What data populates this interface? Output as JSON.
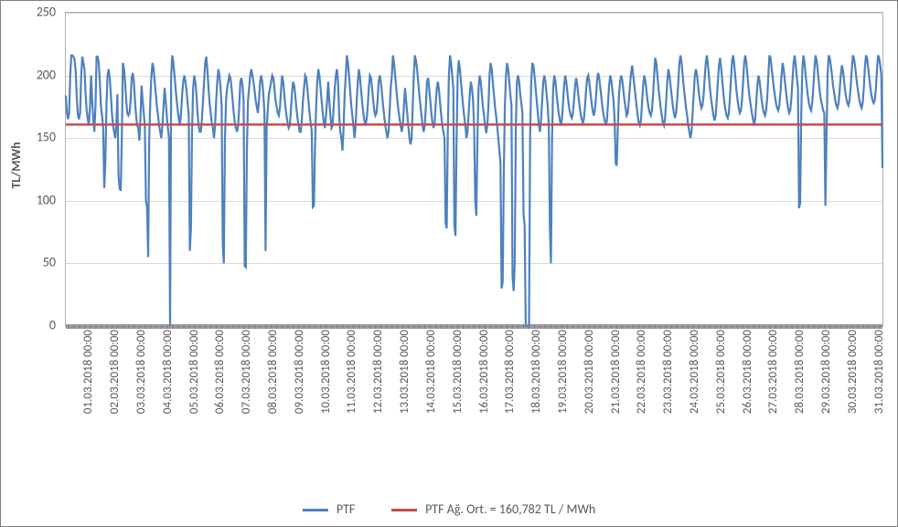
{
  "chart": {
    "type": "line",
    "ylabel": "TL/MWh",
    "ylabel_fontsize": 14,
    "ylim": [
      0,
      250
    ],
    "ytick_step": 50,
    "yticks": [
      0,
      50,
      100,
      150,
      200,
      250
    ],
    "background_color": "#ffffff",
    "border_color": "#808080",
    "plot_border_color": "#b0b0b0",
    "grid_color": "#d9d9d9",
    "tick_label_color": "#595959",
    "tick_label_fontsize": 14,
    "x_tick_label_fontsize": 13,
    "x_labels": [
      "01.03.2018 00:00",
      "02.03.2018 00:00",
      "03.03.2018 00:00",
      "04.03.2018 00:00",
      "05.03.2018 00:00",
      "06.03.2018 00:00",
      "07.03.2018 00:00",
      "08.03.2018 00:00",
      "09.03.2018 00:00",
      "10.03.2018 00:00",
      "11.03.2018 00:00",
      "12.03.2018 00:00",
      "13.03.2018 00:00",
      "14.03.2018 00:00",
      "15.03.2018 00:00",
      "16.03.2018 00:00",
      "17.03.2018 00:00",
      "18.03.2018 00:00",
      "19.03.2018 00:00",
      "20.03.2018 00:00",
      "21.03.2018 00:00",
      "22.03.2018 00:00",
      "23.03.2018 00:00",
      "24.03.2018 00:00",
      "25.03.2018 00:00",
      "26.03.2018 00:00",
      "27.03.2018 00:00",
      "28.03.2018 00:00",
      "29.03.2018 00:00",
      "30.03.2018 00:00",
      "31.03.2018 00:00"
    ],
    "series": [
      {
        "name": "PTF",
        "label": "PTF",
        "color": "#4e81bd",
        "line_width": 2.2,
        "values": [
          184,
          170,
          165,
          170,
          200,
          216,
          216,
          215,
          212,
          203,
          182,
          168,
          165,
          170,
          200,
          215,
          210,
          205,
          185,
          172,
          165,
          160,
          175,
          200,
          180,
          165,
          155,
          175,
          215,
          215,
          210,
          195,
          175,
          168,
          158,
          110,
          130,
          175,
          200,
          205,
          198,
          185,
          170,
          160,
          155,
          150,
          160,
          185,
          120,
          110,
          108,
          150,
          210,
          205,
          195,
          180,
          170,
          168,
          170,
          180,
          198,
          202,
          195,
          180,
          168,
          160,
          158,
          148,
          166,
          192,
          180,
          170,
          160,
          100,
          95,
          55,
          150,
          180,
          200,
          210,
          205,
          195,
          185,
          175,
          168,
          160,
          155,
          150,
          160,
          175,
          190,
          180,
          168,
          158,
          150,
          0,
          200,
          216,
          210,
          200,
          190,
          180,
          172,
          165,
          160,
          170,
          185,
          195,
          200,
          195,
          188,
          178,
          168,
          60,
          78,
          155,
          190,
          200,
          195,
          185,
          170,
          160,
          155,
          155,
          165,
          180,
          195,
          210,
          215,
          205,
          190,
          178,
          170,
          162,
          158,
          150,
          160,
          180,
          195,
          205,
          200,
          190,
          175,
          65,
          50,
          150,
          180,
          190,
          195,
          200,
          198,
          190,
          180,
          170,
          162,
          158,
          155,
          160,
          175,
          195,
          198,
          192,
          180,
          48,
          47,
          140,
          180,
          190,
          200,
          205,
          200,
          195,
          188,
          180,
          175,
          170,
          180,
          195,
          200,
          195,
          185,
          170,
          60,
          158,
          172,
          185,
          190,
          195,
          200,
          198,
          190,
          180,
          175,
          170,
          168,
          174,
          188,
          200,
          195,
          185,
          175,
          168,
          162,
          158,
          160,
          172,
          186,
          195,
          192,
          184,
          174,
          166,
          160,
          155,
          155,
          165,
          180,
          190,
          200,
          198,
          190,
          180,
          170,
          162,
          155,
          95,
          96,
          144,
          175,
          195,
          205,
          200,
          190,
          180,
          170,
          162,
          158,
          168,
          180,
          195,
          180,
          168,
          158,
          160,
          175,
          190,
          200,
          205,
          195,
          168,
          155,
          150,
          140,
          158,
          185,
          200,
          216,
          210,
          200,
          188,
          176,
          168,
          160,
          150,
          160,
          180,
          195,
          205,
          198,
          188,
          178,
          170,
          164,
          160,
          165,
          175,
          190,
          200,
          198,
          190,
          180,
          172,
          168,
          170,
          180,
          195,
          200,
          195,
          186,
          176,
          168,
          160,
          155,
          150,
          155,
          172,
          190,
          200,
          216,
          210,
          200,
          190,
          180,
          172,
          166,
          160,
          155,
          160,
          175,
          190,
          180,
          170,
          160,
          150,
          145,
          150,
          175,
          200,
          216,
          212,
          205,
          195,
          185,
          176,
          168,
          160,
          155,
          160,
          175,
          195,
          198,
          190,
          180,
          170,
          162,
          158,
          162,
          178,
          190,
          195,
          188,
          178,
          168,
          160,
          155,
          150,
          82,
          78,
          155,
          200,
          216,
          210,
          200,
          190,
          80,
          72,
          148,
          200,
          212,
          205,
          195,
          185,
          175,
          167,
          160,
          150,
          155,
          170,
          185,
          195,
          190,
          180,
          158,
          100,
          88,
          150,
          190,
          200,
          195,
          185,
          175,
          168,
          160,
          154,
          160,
          175,
          200,
          210,
          205,
          195,
          185,
          175,
          168,
          160,
          150,
          140,
          130,
          30,
          35,
          120,
          175,
          200,
          210,
          205,
          195,
          185,
          176,
          40,
          28,
          50,
          160,
          195,
          200,
          195,
          185,
          178,
          170,
          90,
          80,
          0,
          0,
          0,
          0,
          150,
          195,
          210,
          208,
          200,
          190,
          180,
          170,
          160,
          155,
          165,
          180,
          195,
          200,
          195,
          185,
          176,
          160,
          80,
          50,
          150,
          190,
          200,
          196,
          186,
          178,
          170,
          165,
          160,
          165,
          178,
          192,
          200,
          195,
          186,
          178,
          172,
          168,
          166,
          170,
          180,
          192,
          198,
          192,
          184,
          176,
          170,
          165,
          162,
          165,
          175,
          188,
          198,
          200,
          194,
          186,
          178,
          172,
          168,
          172,
          182,
          196,
          202,
          198,
          190,
          182,
          174,
          168,
          164,
          160,
          164,
          178,
          192,
          200,
          196,
          188,
          180,
          165,
          130,
          128,
          160,
          185,
          195,
          200,
          196,
          188,
          180,
          174,
          168,
          170,
          180,
          192,
          202,
          208,
          200,
          192,
          184,
          176,
          168,
          162,
          160,
          164,
          178,
          192,
          200,
          196,
          188,
          180,
          174,
          170,
          168,
          172,
          184,
          200,
          214,
          210,
          200,
          190,
          182,
          174,
          168,
          162,
          160,
          166,
          180,
          195,
          205,
          200,
          192,
          184,
          176,
          170,
          166,
          170,
          180,
          195,
          210,
          216,
          210,
          200,
          190,
          182,
          174,
          168,
          160,
          155,
          150,
          155,
          170,
          185,
          200,
          205,
          200,
          192,
          184,
          178,
          174,
          176,
          184,
          198,
          210,
          216,
          208,
          198,
          188,
          180,
          174,
          168,
          164,
          168,
          180,
          195,
          208,
          214,
          206,
          196,
          186,
          178,
          172,
          168,
          166,
          170,
          182,
          198,
          212,
          216,
          208,
          198,
          188,
          180,
          174,
          170,
          172,
          180,
          195,
          210,
          216,
          210,
          200,
          190,
          182,
          176,
          170,
          165,
          160,
          165,
          178,
          192,
          200,
          196,
          188,
          180,
          174,
          170,
          168,
          172,
          182,
          200,
          216,
          214,
          206,
          198,
          190,
          184,
          178,
          174,
          172,
          176,
          186,
          200,
          210,
          205,
          196,
          188,
          180,
          174,
          170,
          172,
          182,
          196,
          210,
          216,
          208,
          198,
          190,
          94,
          98,
          170,
          205,
          216,
          210,
          200,
          192,
          184,
          178,
          174,
          172,
          178,
          190,
          205,
          216,
          212,
          204,
          195,
          186,
          180,
          176,
          172,
          170,
          96,
          150,
          200,
          216,
          214,
          208,
          200,
          192,
          186,
          180,
          176,
          174,
          178,
          188,
          200,
          208,
          204,
          196,
          188,
          182,
          178,
          176,
          180,
          190,
          204,
          216,
          214,
          208,
          200,
          192,
          186,
          180,
          176,
          174,
          178,
          190,
          206,
          216,
          214,
          206,
          198,
          190,
          184,
          180,
          178,
          180,
          190,
          204,
          216,
          214,
          208,
          200,
          126
        ]
      },
      {
        "name": "PTF_mean",
        "label": "PTF Ağ. Ort. = 160,782 TL / MWh",
        "color": "#c0504d",
        "line_width": 2.5,
        "constant_value": 160.782
      }
    ]
  },
  "legend": {
    "items": [
      {
        "label": "PTF",
        "color": "#4e81bd"
      },
      {
        "label": "PTF Ağ. Ort. = 160,782 TL / MWh",
        "color": "#c0504d"
      }
    ]
  }
}
